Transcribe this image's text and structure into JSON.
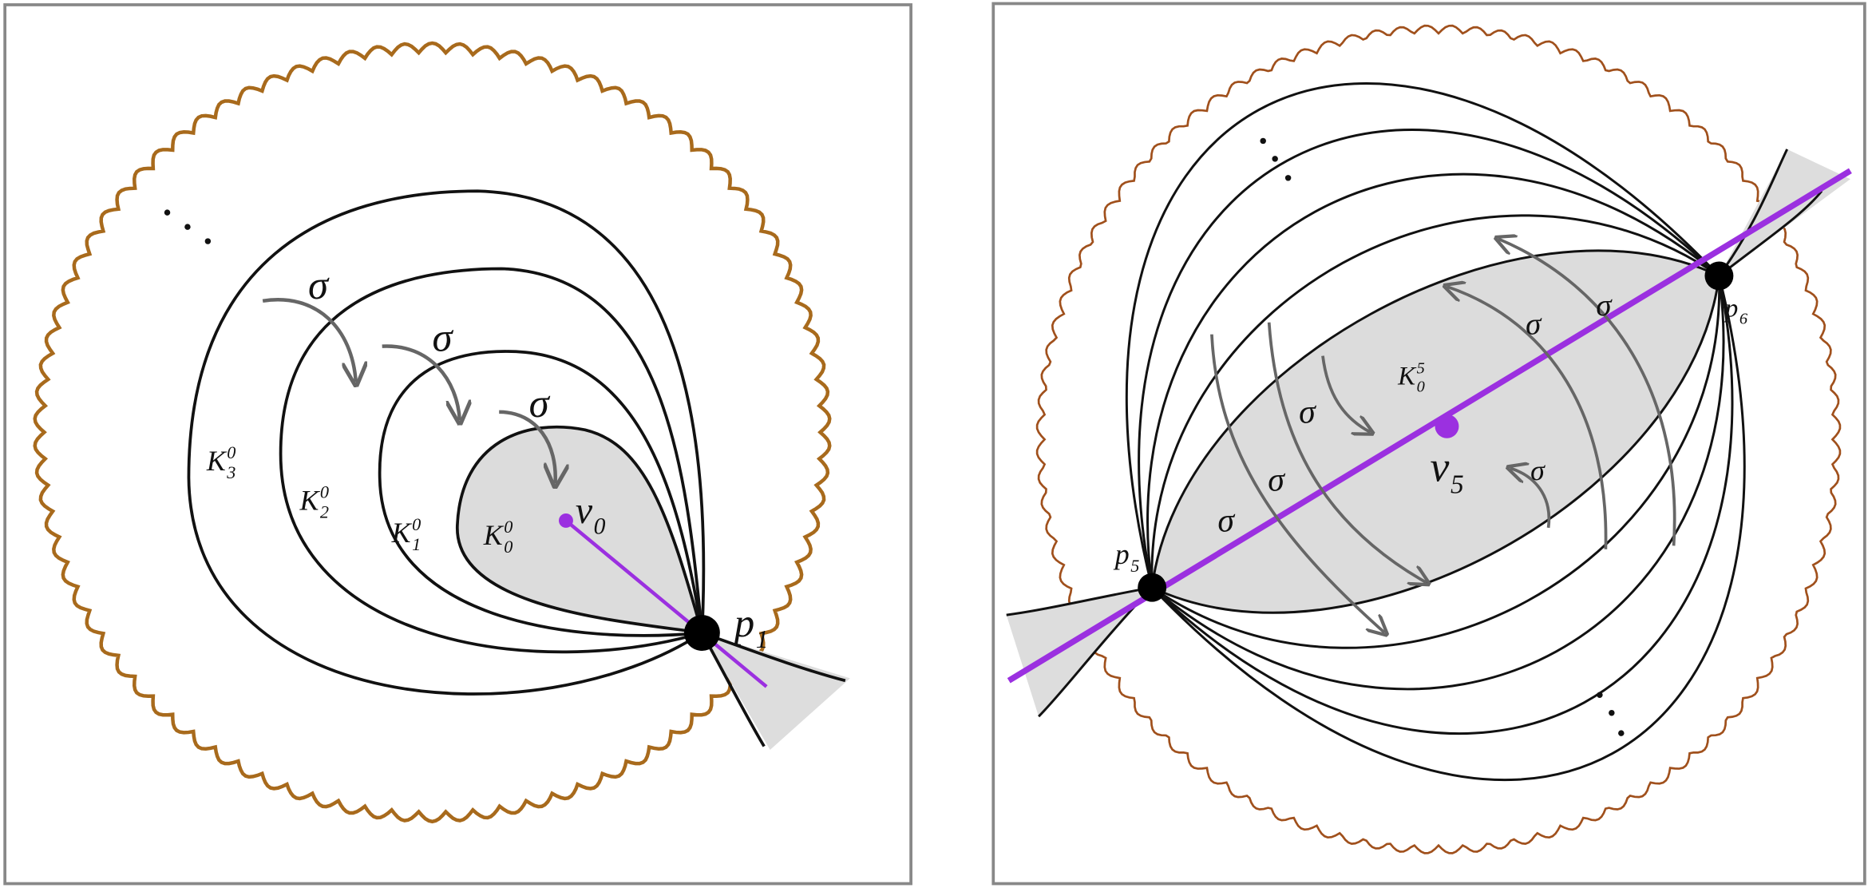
{
  "panels": [
    {
      "labels": [
        {
          "base": "σ"
        },
        {
          "base": "σ"
        },
        {
          "base": "σ"
        },
        {
          "base": "K",
          "sub": "3",
          "sup": "0"
        },
        {
          "base": "K",
          "sub": "2",
          "sup": "0"
        },
        {
          "base": "K",
          "sub": "1",
          "sup": "0"
        },
        {
          "base": "K",
          "sub": "0",
          "sup": "0"
        },
        {
          "base": "v",
          "sub": "0"
        },
        {
          "base": "p",
          "sub": "1"
        }
      ]
    },
    {
      "labels": [
        {
          "base": "K",
          "sub": "0",
          "sup": "5"
        },
        {
          "base": "v",
          "sub": "5"
        },
        {
          "base": "p",
          "sub": "5"
        },
        {
          "base": "p",
          "sub": "6"
        },
        {
          "base": "σ"
        },
        {
          "base": "σ"
        },
        {
          "base": "σ"
        },
        {
          "base": "σ"
        },
        {
          "base": "σ"
        },
        {
          "base": "σ"
        }
      ]
    }
  ]
}
